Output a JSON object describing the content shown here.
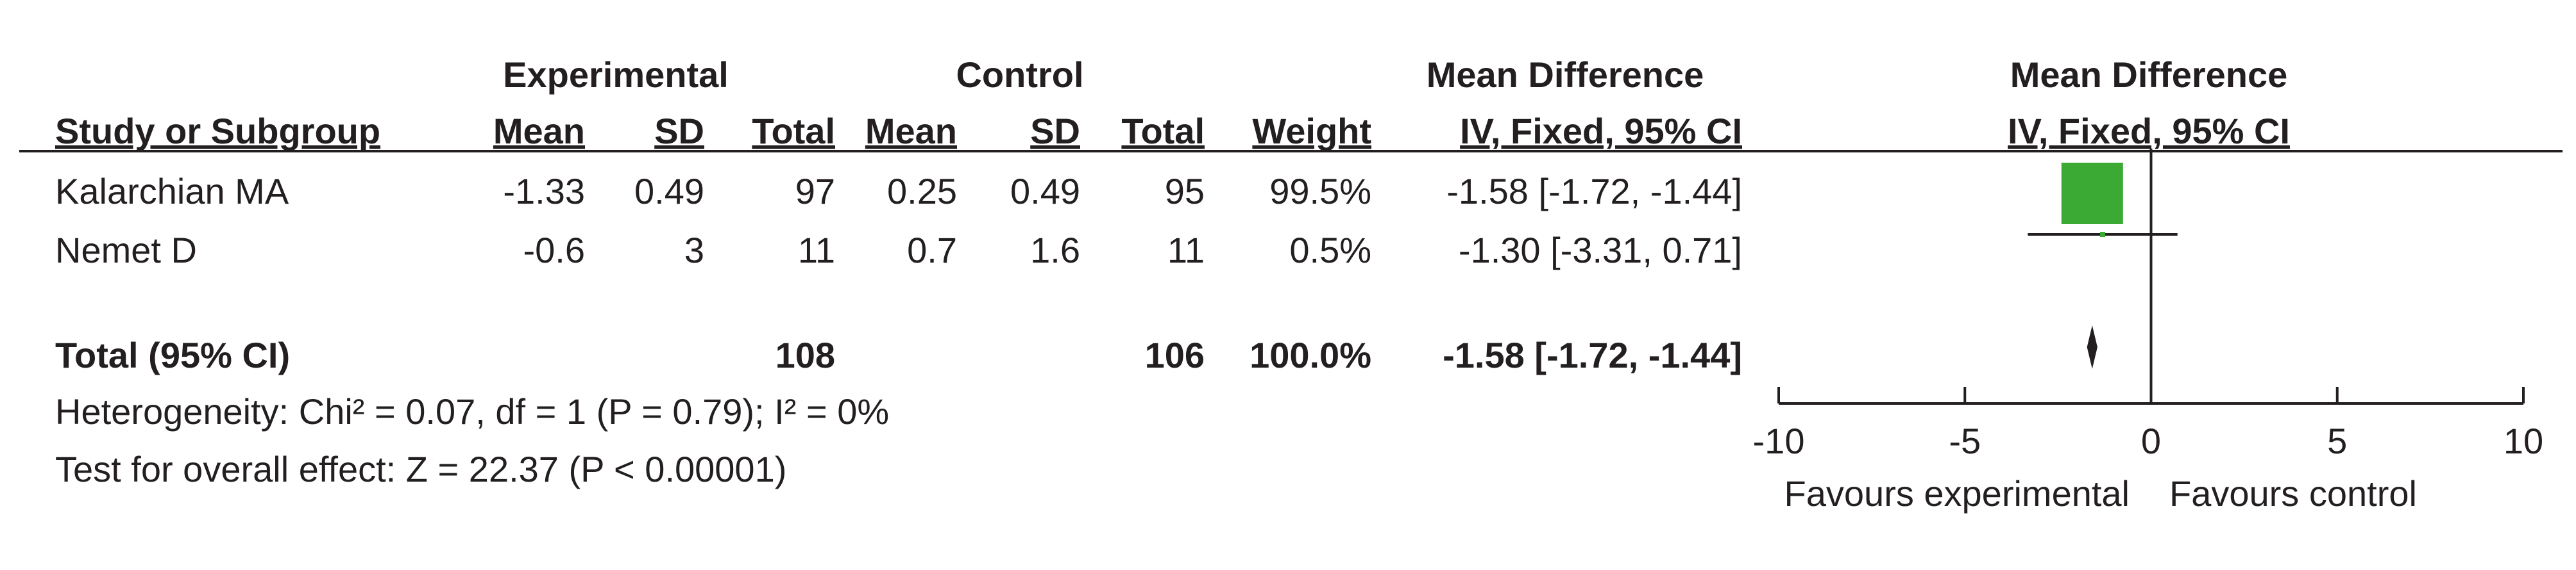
{
  "headers": {
    "group_experimental": "Experimental",
    "group_control": "Control",
    "group_md_text": "Mean Difference",
    "group_md_plot": "Mean Difference",
    "study": "Study or Subgroup",
    "exp_mean": "Mean",
    "exp_sd": "SD",
    "exp_total": "Total",
    "ctl_mean": "Mean",
    "ctl_sd": "SD",
    "ctl_total": "Total",
    "weight": "Weight",
    "method_text": "IV, Fixed, 95% CI",
    "method_plot": "IV, Fixed, 95% CI"
  },
  "studies": [
    {
      "name": "Kalarchian MA",
      "exp_mean": "-1.33",
      "exp_sd": "0.49",
      "exp_total": "97",
      "ctl_mean": "0.25",
      "ctl_sd": "0.49",
      "ctl_total": "95",
      "weight": "99.5%",
      "ci_text": "-1.58 [-1.72, -1.44]"
    },
    {
      "name": "Nemet D",
      "exp_mean": "-0.6",
      "exp_sd": "3",
      "exp_total": "11",
      "ctl_mean": "0.7",
      "ctl_sd": "1.6",
      "ctl_total": "11",
      "weight": "0.5%",
      "ci_text": "-1.30 [-3.31, 0.71]"
    }
  ],
  "total": {
    "label": "Total (95% CI)",
    "exp_total": "108",
    "ctl_total": "106",
    "weight": "100.0%",
    "ci_text": "-1.58 [-1.72, -1.44]"
  },
  "footnotes": {
    "heterogeneity": "Heterogeneity: Chi² = 0.07, df = 1 (P = 0.79); I² = 0%",
    "overall": "Test for overall effect: Z = 22.37 (P < 0.00001)"
  },
  "axis_labels": {
    "left": "Favours experimental",
    "right": "Favours control"
  },
  "colors": {
    "square": "#3aaa35",
    "text": "#231f20",
    "line": "#231f20"
  },
  "chart_data": {
    "type": "forest",
    "xlim": [
      -10,
      10
    ],
    "ticks": [
      -10,
      -5,
      0,
      5,
      10
    ],
    "tick_labels": [
      "-10",
      "-5",
      "0",
      "5",
      "10"
    ],
    "studies": [
      {
        "name": "Kalarchian MA",
        "md": -1.58,
        "lower": -1.72,
        "upper": -1.44,
        "weight": 99.5
      },
      {
        "name": "Nemet D",
        "md": -1.3,
        "lower": -3.31,
        "upper": 0.71,
        "weight": 0.5
      }
    ],
    "pooled": {
      "md": -1.58,
      "lower": -1.72,
      "upper": -1.44
    }
  }
}
